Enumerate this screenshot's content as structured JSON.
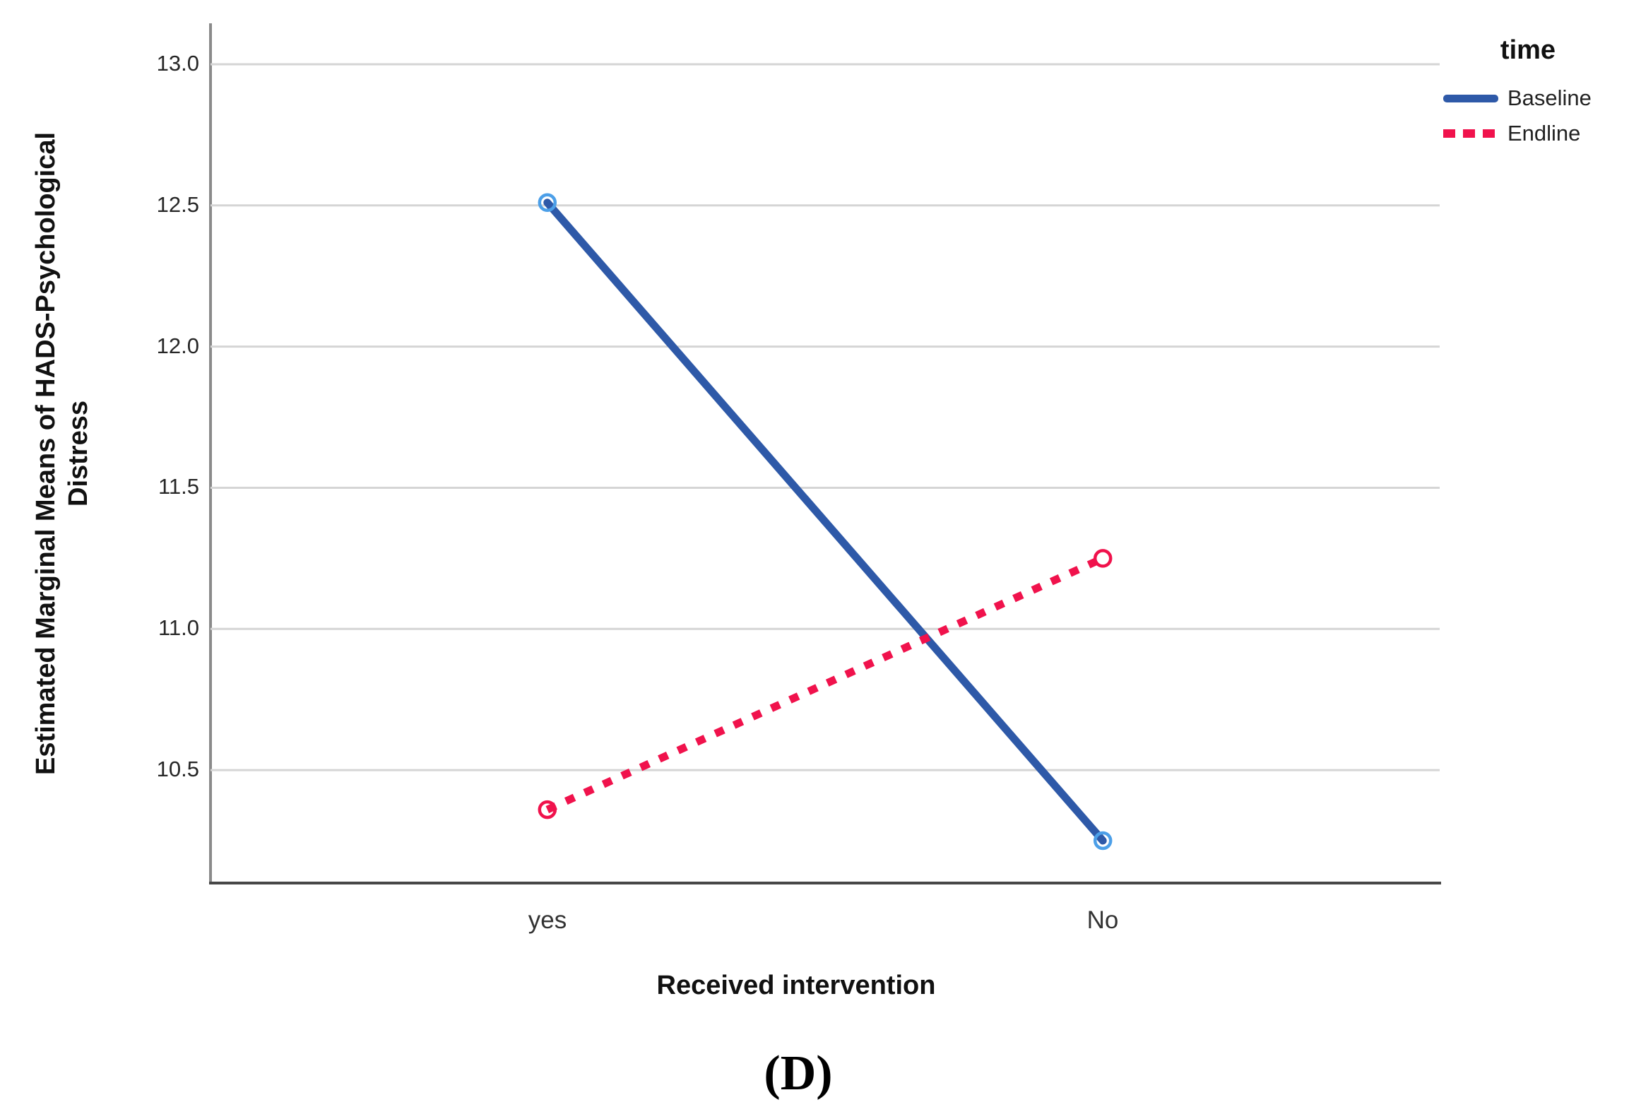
{
  "figure": {
    "caption": "(D)"
  },
  "chart_data": {
    "type": "line",
    "title": "",
    "xlabel": "Received intervention",
    "ylabel": "Estimated Marginal Means of HADS-Psychological Distress",
    "ylabel_lines": [
      "Estimated Marginal Means of HADS-Psychological",
      "Distress"
    ],
    "categories": [
      "yes",
      "No"
    ],
    "y_ticks": [
      "13.0",
      "12.5",
      "12.0",
      "11.5",
      "11.0",
      "10.5"
    ],
    "y_tick_values": [
      13.0,
      12.5,
      12.0,
      11.5,
      11.0,
      10.5
    ],
    "ylim": [
      10.1,
      13.14
    ],
    "grid": "horizontal",
    "legend": {
      "title": "time",
      "position": "top-right",
      "entries": [
        {
          "label": "Baseline",
          "line_style": "solid",
          "color": "#2E59A8",
          "marker": "open-circle",
          "marker_color": "#4C9FE8"
        },
        {
          "label": "Endline",
          "line_style": "dotted",
          "color": "#F0124C",
          "marker": "open-circle",
          "marker_color": "#F0124C"
        }
      ]
    },
    "series": [
      {
        "name": "Baseline",
        "style": "solid",
        "color": "#2E59A8",
        "marker_color": "#4C9FE8",
        "values": [
          12.51,
          10.25
        ]
      },
      {
        "name": "Endline",
        "style": "dotted",
        "color": "#F0124C",
        "marker_color": "#F0124C",
        "values": [
          10.36,
          11.25
        ]
      }
    ]
  }
}
